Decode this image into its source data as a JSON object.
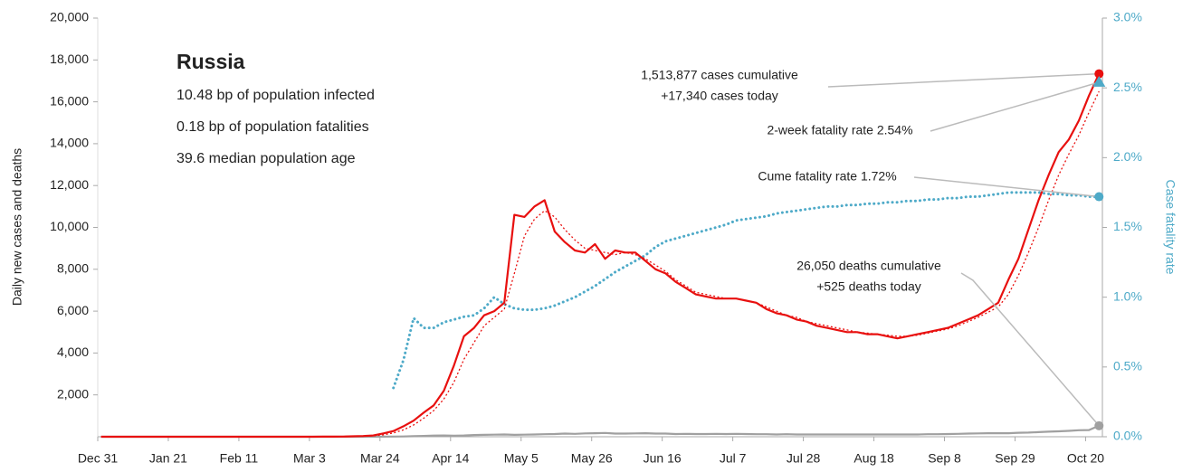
{
  "chart_data": {
    "type": "line",
    "info": {
      "title": "Russia",
      "lines": [
        "10.48 bp of population infected",
        "0.18 bp of population fatalities",
        "39.6 median population age"
      ]
    },
    "ylabel": "Daily new cases and deaths",
    "y2label": "Case fatality rate",
    "xlim": [
      0,
      299
    ],
    "xticks": [
      {
        "value": 0,
        "label": "Dec 31"
      },
      {
        "value": 21,
        "label": "Jan 21"
      },
      {
        "value": 42,
        "label": "Feb 11"
      },
      {
        "value": 63,
        "label": "Mar 3"
      },
      {
        "value": 84,
        "label": "Mar 24"
      },
      {
        "value": 105,
        "label": "Apr 14"
      },
      {
        "value": 126,
        "label": "May 5"
      },
      {
        "value": 147,
        "label": "May 26"
      },
      {
        "value": 168,
        "label": "Jun 16"
      },
      {
        "value": 189,
        "label": "Jul 7"
      },
      {
        "value": 210,
        "label": "Jul 28"
      },
      {
        "value": 231,
        "label": "Aug 18"
      },
      {
        "value": 252,
        "label": "Sep 8"
      },
      {
        "value": 273,
        "label": "Sep 29"
      },
      {
        "value": 294,
        "label": "Oct 20"
      }
    ],
    "ylim": [
      0,
      20000
    ],
    "yticks": [
      {
        "value": 2000,
        "label": "2,000"
      },
      {
        "value": 4000,
        "label": "4,000"
      },
      {
        "value": 6000,
        "label": "6,000"
      },
      {
        "value": 8000,
        "label": "8,000"
      },
      {
        "value": 10000,
        "label": "10,000"
      },
      {
        "value": 12000,
        "label": "12,000"
      },
      {
        "value": 14000,
        "label": "14,000"
      },
      {
        "value": 16000,
        "label": "16,000"
      },
      {
        "value": 18000,
        "label": "18,000"
      },
      {
        "value": 20000,
        "label": "20,000"
      }
    ],
    "y2lim": [
      0,
      3
    ],
    "y2ticks": [
      {
        "value": 0,
        "label": "0.0%"
      },
      {
        "value": 0.5,
        "label": "0.5%"
      },
      {
        "value": 1,
        "label": "1.0%"
      },
      {
        "value": 1.5,
        "label": "1.5%"
      },
      {
        "value": 2,
        "label": "2.0%"
      },
      {
        "value": 2.5,
        "label": "2.5%"
      },
      {
        "value": 3,
        "label": "3.0%"
      }
    ],
    "x": [
      1,
      4,
      7,
      10,
      13,
      16,
      19,
      22,
      25,
      28,
      31,
      34,
      37,
      40,
      43,
      46,
      49,
      52,
      55,
      58,
      61,
      64,
      67,
      70,
      73,
      76,
      79,
      82,
      85,
      88,
      91,
      94,
      97,
      100,
      103,
      106,
      109,
      112,
      115,
      118,
      121,
      124,
      127,
      130,
      133,
      136,
      139,
      142,
      145,
      148,
      151,
      154,
      157,
      160,
      163,
      166,
      169,
      172,
      175,
      178,
      181,
      184,
      187,
      190,
      193,
      196,
      199,
      202,
      205,
      208,
      211,
      214,
      217,
      220,
      223,
      226,
      229,
      232,
      235,
      238,
      241,
      244,
      247,
      250,
      253,
      256,
      259,
      262,
      265,
      268,
      271,
      274,
      277,
      280,
      283,
      286,
      289,
      292,
      295,
      298
    ],
    "series": [
      {
        "color": "#e8100f",
        "style": "solid",
        "values": [
          0,
          0,
          0,
          0,
          0,
          0,
          0,
          0,
          0,
          0,
          0,
          0,
          0,
          0,
          0,
          0,
          0,
          0,
          0,
          0,
          0,
          0,
          3,
          6,
          10,
          20,
          33,
          60,
          160,
          270,
          500,
          770,
          1150,
          1500,
          2200,
          3400,
          4800,
          5200,
          5800,
          6000,
          6400,
          10600,
          10500,
          11000,
          11300,
          9800,
          9300,
          8900,
          8800,
          9200,
          8500,
          8900,
          8800,
          8800,
          8400,
          8000,
          7800,
          7400,
          7100,
          6800,
          6700,
          6600,
          6600,
          6600,
          6500,
          6400,
          6100,
          5900,
          5800,
          5600,
          5500,
          5300,
          5200,
          5100,
          5000,
          5000,
          4900,
          4900,
          4800,
          4700,
          4800,
          4900,
          5000,
          5100,
          5200,
          5400,
          5600,
          5800,
          6100,
          6400,
          7500,
          8500,
          9900,
          11300,
          12500,
          13600,
          14200,
          15100,
          16300,
          17340
        ]
      },
      {
        "color": "#e8100f",
        "style": "dotted",
        "values": [
          0,
          0,
          0,
          0,
          0,
          0,
          0,
          0,
          0,
          0,
          0,
          0,
          0,
          0,
          0,
          0,
          0,
          0,
          0,
          0,
          0,
          0,
          1,
          3,
          6,
          12,
          22,
          40,
          90,
          180,
          330,
          560,
          880,
          1250,
          1800,
          2600,
          3700,
          4500,
          5300,
          5700,
          6100,
          7800,
          9600,
          10400,
          10800,
          10500,
          9900,
          9400,
          9000,
          8900,
          8800,
          8700,
          8800,
          8700,
          8500,
          8200,
          7900,
          7500,
          7200,
          6900,
          6800,
          6700,
          6600,
          6600,
          6500,
          6400,
          6200,
          6000,
          5800,
          5700,
          5500,
          5400,
          5300,
          5200,
          5100,
          5000,
          4950,
          4900,
          4850,
          4800,
          4800,
          4850,
          4950,
          5050,
          5150,
          5300,
          5500,
          5700,
          5950,
          6200,
          6800,
          7700,
          8800,
          10000,
          11300,
          12500,
          13500,
          14400,
          15500,
          16500
        ]
      },
      {
        "color": "#a0a0a0",
        "style": "solid",
        "values": [
          0,
          0,
          0,
          0,
          0,
          0,
          0,
          0,
          0,
          0,
          0,
          0,
          0,
          0,
          0,
          0,
          0,
          0,
          0,
          0,
          0,
          0,
          0,
          0,
          0,
          0,
          0,
          0,
          5,
          10,
          15,
          25,
          40,
          55,
          60,
          50,
          60,
          80,
          90,
          100,
          110,
          90,
          100,
          110,
          120,
          130,
          150,
          140,
          160,
          170,
          180,
          150,
          150,
          160,
          170,
          150,
          150,
          130,
          140,
          130,
          130,
          140,
          130,
          140,
          130,
          120,
          120,
          110,
          120,
          110,
          110,
          110,
          110,
          110,
          110,
          110,
          110,
          110,
          110,
          110,
          110,
          110,
          120,
          120,
          130,
          140,
          150,
          160,
          170,
          170,
          170,
          190,
          200,
          220,
          240,
          260,
          280,
          310,
          320,
          525
        ]
      },
      {
        "color": "#4eaac8",
        "style": "dotted",
        "axis": "y2",
        "values": [
          null,
          null,
          null,
          null,
          null,
          null,
          null,
          null,
          null,
          null,
          null,
          null,
          null,
          null,
          null,
          null,
          null,
          null,
          null,
          null,
          null,
          null,
          null,
          null,
          null,
          null,
          null,
          null,
          null,
          0.35,
          0.55,
          0.85,
          0.78,
          0.78,
          0.82,
          0.84,
          0.86,
          0.87,
          0.92,
          1.0,
          0.95,
          0.92,
          0.91,
          0.91,
          0.92,
          0.94,
          0.97,
          1.0,
          1.04,
          1.08,
          1.13,
          1.18,
          1.22,
          1.26,
          1.3,
          1.36,
          1.4,
          1.42,
          1.44,
          1.46,
          1.48,
          1.5,
          1.52,
          1.55,
          1.56,
          1.57,
          1.58,
          1.6,
          1.61,
          1.62,
          1.63,
          1.64,
          1.65,
          1.65,
          1.66,
          1.66,
          1.67,
          1.67,
          1.68,
          1.68,
          1.69,
          1.69,
          1.7,
          1.7,
          1.71,
          1.71,
          1.72,
          1.72,
          1.73,
          1.74,
          1.75,
          1.75,
          1.75,
          1.75,
          1.74,
          1.74,
          1.73,
          1.73,
          1.72,
          1.72
        ]
      }
    ],
    "annotations": [
      {
        "lines": [
          "1,513,877 cases cumulative",
          "+17,340 cases today"
        ]
      },
      {
        "lines": [
          "2-week fatality rate 2.54%"
        ],
        "value": 2.54
      },
      {
        "lines": [
          "Cume fatality rate 1.72%"
        ]
      },
      {
        "lines": [
          "26,050 deaths cumulative",
          "+525 deaths today"
        ]
      }
    ]
  }
}
